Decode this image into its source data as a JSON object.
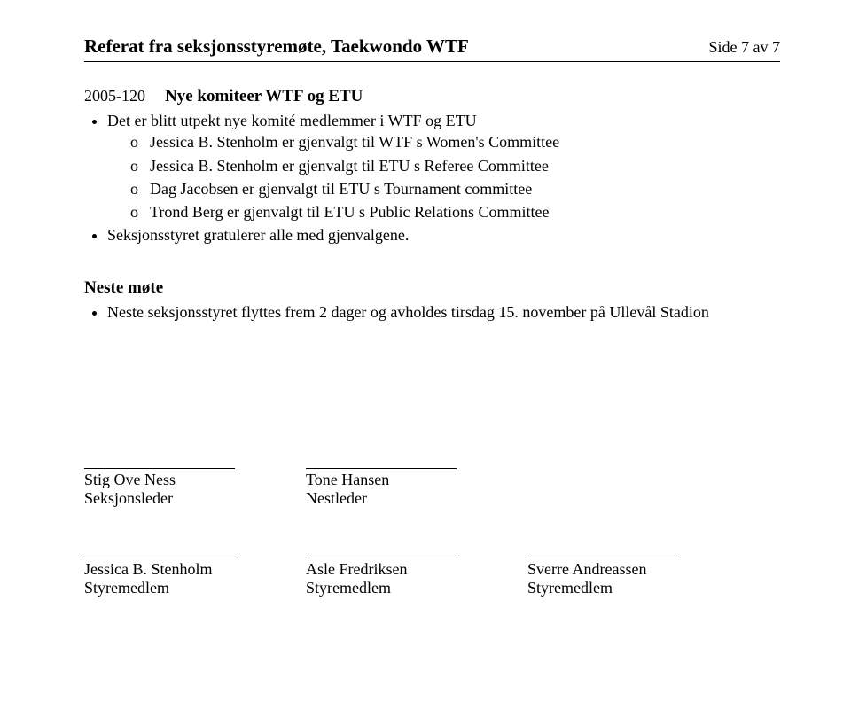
{
  "header": {
    "title": "Referat fra seksjonsstyremøte, Taekwondo WTF",
    "page": "Side 7 av 7"
  },
  "section": {
    "number": "2005-120",
    "title": "Nye komiteer WTF og ETU"
  },
  "bullets": {
    "b1": "Det er blitt utpekt nye komité medlemmer i WTF og ETU",
    "s1": "Jessica B. Stenholm er gjenvalgt til WTF s Women's Committee",
    "s2": "Jessica B. Stenholm er gjenvalgt til ETU s Referee Committee",
    "s3": "Dag Jacobsen er gjenvalgt til ETU s Tournament committee",
    "s4": "Trond Berg er gjenvalgt til ETU s Public Relations Committee",
    "b2": "Seksjonsstyret gratulerer alle med gjenvalgene."
  },
  "nextMeeting": {
    "title": "Neste møte",
    "text": "Neste seksjonsstyret flyttes frem 2 dager og avholdes tirsdag 15. november på Ullevål Stadion"
  },
  "signatures": {
    "row1": [
      {
        "name": "Stig Ove Ness",
        "role": "Seksjonsleder"
      },
      {
        "name": "Tone Hansen",
        "role": "Nestleder"
      }
    ],
    "row2": [
      {
        "name": "Jessica B. Stenholm",
        "role": "Styremedlem"
      },
      {
        "name": "Asle Fredriksen",
        "role": "Styremedlem"
      },
      {
        "name": "Sverre Andreassen",
        "role": "Styremedlem"
      }
    ]
  }
}
